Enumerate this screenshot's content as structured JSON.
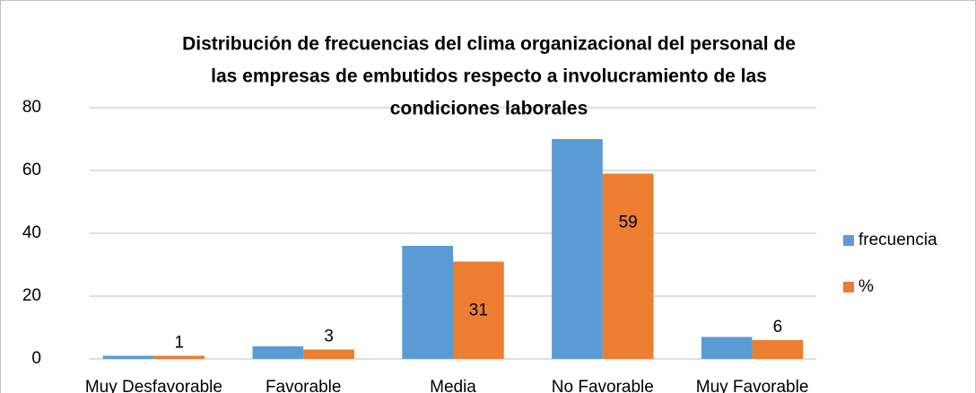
{
  "chart_data": {
    "type": "bar",
    "title": [
      "Distribución de frecuencias del clima organizacional del personal de",
      "las empresas de embutidos respecto a involucramiento de las",
      "condiciones laborales"
    ],
    "categories": [
      "Muy Desfavorable",
      "Favorable",
      "Media",
      "No Favorable",
      "Muy Favorable"
    ],
    "series": [
      {
        "name": "frecuencia",
        "color": "#5b9bd5",
        "values": [
          1,
          4,
          36,
          70,
          7
        ]
      },
      {
        "name": "%",
        "color": "#ed7d31",
        "values": [
          1,
          3,
          31,
          59,
          6
        ]
      }
    ],
    "ylim": [
      0,
      80
    ],
    "yticks": [
      0,
      20,
      40,
      60,
      80
    ],
    "grid": true,
    "legend": "right"
  }
}
